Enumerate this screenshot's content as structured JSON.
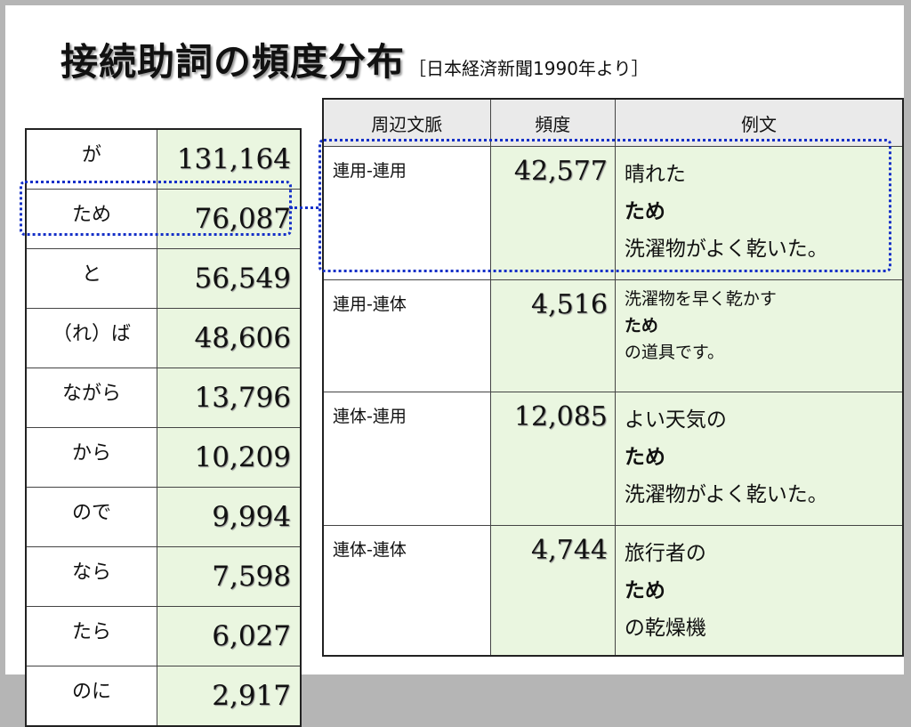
{
  "title": {
    "main": "接続助詞の頻度分布",
    "source": "［日本経済新聞1990年より］"
  },
  "frequency_table": [
    {
      "connective": "が",
      "count": "131,164"
    },
    {
      "connective": "ため",
      "count": "76,087"
    },
    {
      "connective": "と",
      "count": "56,549"
    },
    {
      "connective": "（れ）ば",
      "count": "48,606"
    },
    {
      "connective": "ながら",
      "count": "13,796"
    },
    {
      "connective": "から",
      "count": "10,209"
    },
    {
      "connective": "ので",
      "count": "9,994"
    },
    {
      "connective": "なら",
      "count": "7,598"
    },
    {
      "connective": "たら",
      "count": "6,027"
    },
    {
      "connective": "のに",
      "count": "2,917"
    }
  ],
  "context_table": {
    "headers": [
      "周辺文脈",
      "頻度",
      "例文"
    ],
    "rows": [
      {
        "context": "連用-連用",
        "frequency": "42,577",
        "example": [
          "晴れた",
          "ため",
          "洗濯物がよく乾いた。"
        ]
      },
      {
        "context": "連用-連体",
        "frequency": "4,516",
        "example": [
          "洗濯物を早く乾かす",
          "ため",
          "の道具です。"
        ]
      },
      {
        "context": "連体-連用",
        "frequency": "12,085",
        "example": [
          "よい天気の",
          "ため",
          "洗濯物がよく乾いた。"
        ]
      },
      {
        "context": "連体-連体",
        "frequency": "4,744",
        "example": [
          "旅行者の",
          "ため",
          "の乾燥機"
        ]
      }
    ]
  },
  "colors": {
    "cell_green": "#eaf6e0",
    "header_gray": "#eaeaea",
    "highlight_blue": "#1530c8"
  }
}
